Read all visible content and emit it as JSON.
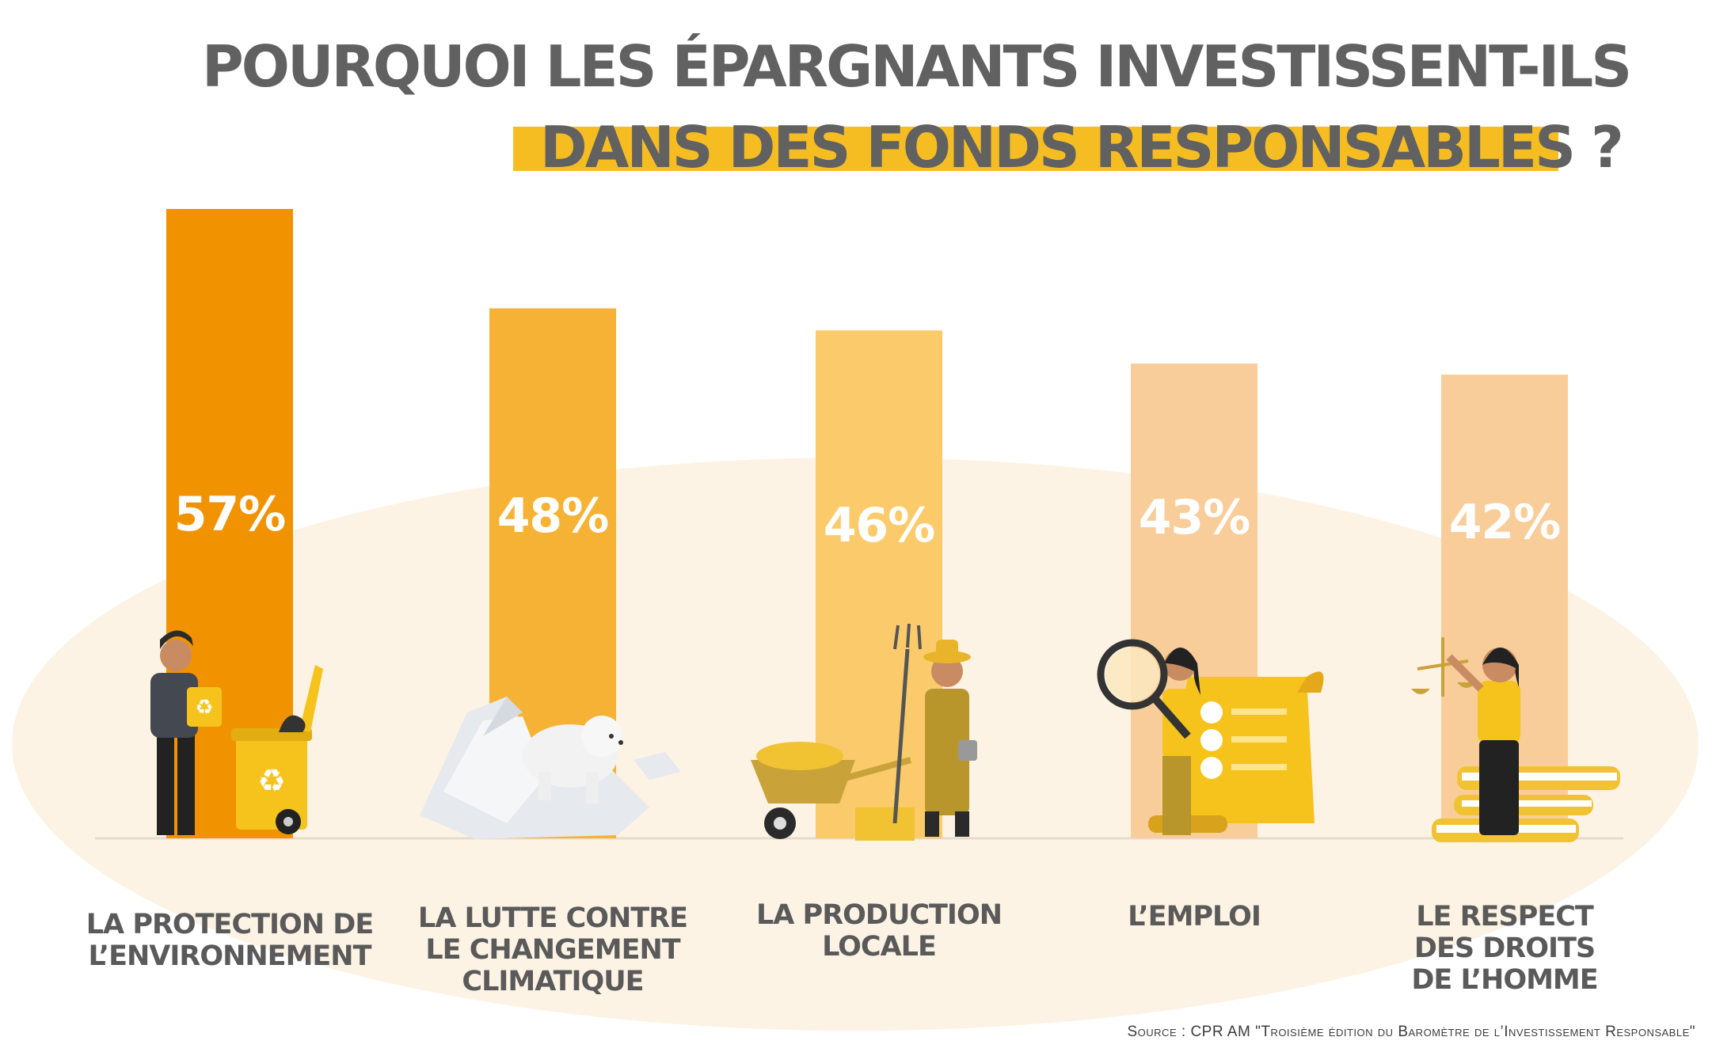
{
  "title": {
    "line1": "POURQUOI LES ÉPARGNANTS INVESTISSENT-ILS",
    "line2": "DANS DES FONDS RESPONSABLES ?"
  },
  "source": "Source : CPR AM \"Troisième édition du Baromètre de l’Investissement Responsable\"",
  "colors": {
    "title_text": "#616161",
    "title_highlight": "#f6bd23",
    "background_ellipse": "#fdf3e4",
    "label_text": "#5a5a5a"
  },
  "chart_data": {
    "type": "bar",
    "categories": [
      "LA PROTECTION DE\nL’ENVIRONNEMENT",
      "LA LUTTE CONTRE\nLE CHANGEMENT\nCLIMATIQUE",
      "LA PRODUCTION\nLOCALE",
      "L’EMPLOI",
      "LE RESPECT\nDES DROITS\nDE L’HOMME"
    ],
    "values": [
      57,
      48,
      46,
      43,
      42
    ],
    "value_labels": [
      "57%",
      "48%",
      "46%",
      "43%",
      "42%"
    ],
    "bar_colors": [
      "#f19200",
      "#f6b234",
      "#fbcb6b",
      "#f9cd9a",
      "#f9cd9a"
    ],
    "ylim": [
      0,
      57
    ],
    "grid": false,
    "legend": "none",
    "illustrations": [
      "recycling-person-icon",
      "polar-bear-icon",
      "farmer-icon",
      "job-search-icon",
      "justice-scales-icon"
    ]
  }
}
